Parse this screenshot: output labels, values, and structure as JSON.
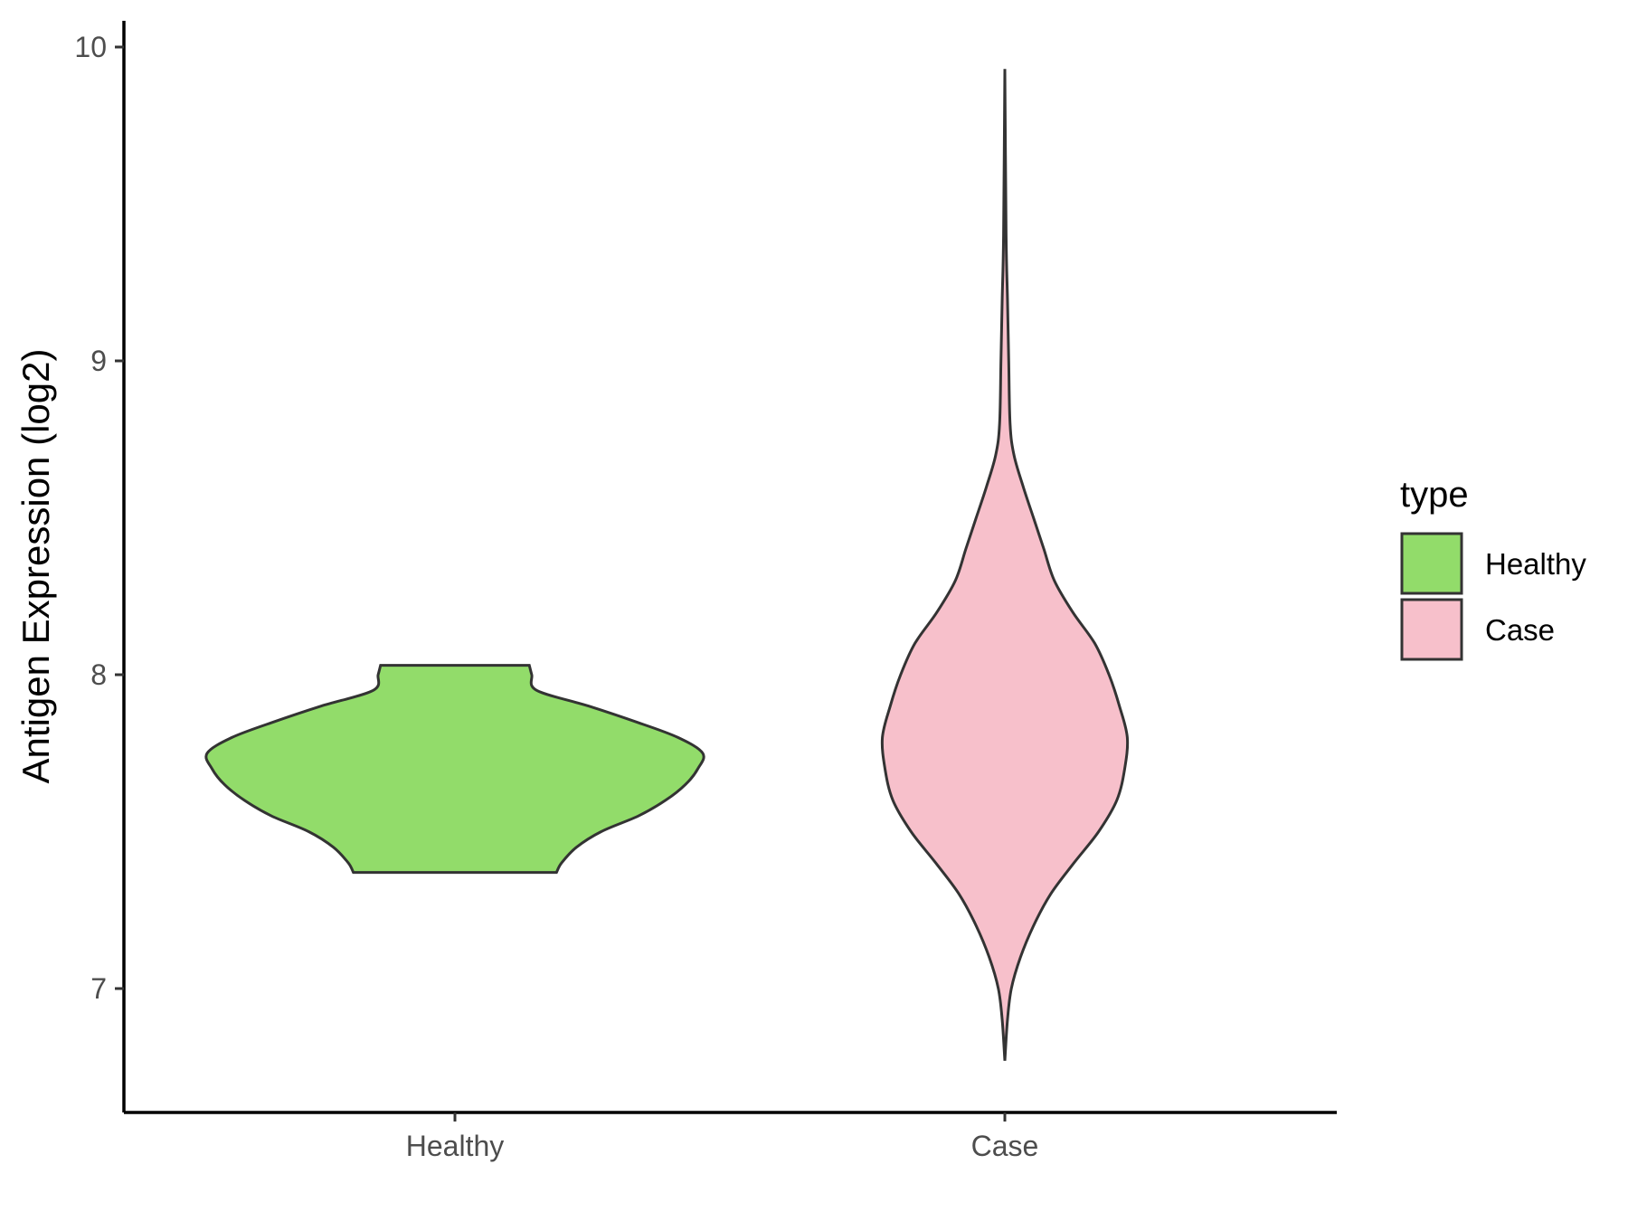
{
  "chart_data": {
    "type": "violin",
    "title": "",
    "xlabel": "",
    "ylabel": "Antigen Expression (log2)",
    "ylim": [
      6.6,
      10.1
    ],
    "yticks": [
      7,
      8,
      9,
      10
    ],
    "categories": [
      "Healthy",
      "Case"
    ],
    "legend": {
      "title": "type",
      "position": "right",
      "entries": [
        {
          "label": "Healthy",
          "color": "#92dc6a"
        },
        {
          "label": "Case",
          "color": "#f7c0cb"
        }
      ]
    },
    "series": [
      {
        "name": "Healthy",
        "color": "#92dc6a",
        "min": 7.37,
        "max": 8.03,
        "profile": [
          [
            7.37,
            0.41
          ],
          [
            7.4,
            0.43
          ],
          [
            7.45,
            0.49
          ],
          [
            7.5,
            0.59
          ],
          [
            7.55,
            0.74
          ],
          [
            7.6,
            0.85
          ],
          [
            7.65,
            0.93
          ],
          [
            7.7,
            0.98
          ],
          [
            7.75,
            1.0
          ],
          [
            7.8,
            0.9
          ],
          [
            7.85,
            0.73
          ],
          [
            7.9,
            0.54
          ],
          [
            7.95,
            0.33
          ],
          [
            8.0,
            0.31
          ],
          [
            8.03,
            0.3
          ]
        ]
      },
      {
        "name": "Case",
        "color": "#f7c0cb",
        "min": 6.77,
        "max": 9.93,
        "profile": [
          [
            6.77,
            0.0
          ],
          [
            6.9,
            0.02
          ],
          [
            7.0,
            0.05
          ],
          [
            7.1,
            0.12
          ],
          [
            7.2,
            0.22
          ],
          [
            7.3,
            0.35
          ],
          [
            7.4,
            0.53
          ],
          [
            7.5,
            0.72
          ],
          [
            7.6,
            0.86
          ],
          [
            7.7,
            0.92
          ],
          [
            7.8,
            0.94
          ],
          [
            7.9,
            0.88
          ],
          [
            8.0,
            0.8
          ],
          [
            8.1,
            0.69
          ],
          [
            8.2,
            0.52
          ],
          [
            8.3,
            0.38
          ],
          [
            8.4,
            0.3
          ],
          [
            8.5,
            0.22
          ],
          [
            8.6,
            0.14
          ],
          [
            8.7,
            0.07
          ],
          [
            8.8,
            0.04
          ],
          [
            9.0,
            0.03
          ],
          [
            9.2,
            0.02
          ],
          [
            9.4,
            0.01
          ],
          [
            9.93,
            0.0
          ]
        ]
      }
    ]
  }
}
